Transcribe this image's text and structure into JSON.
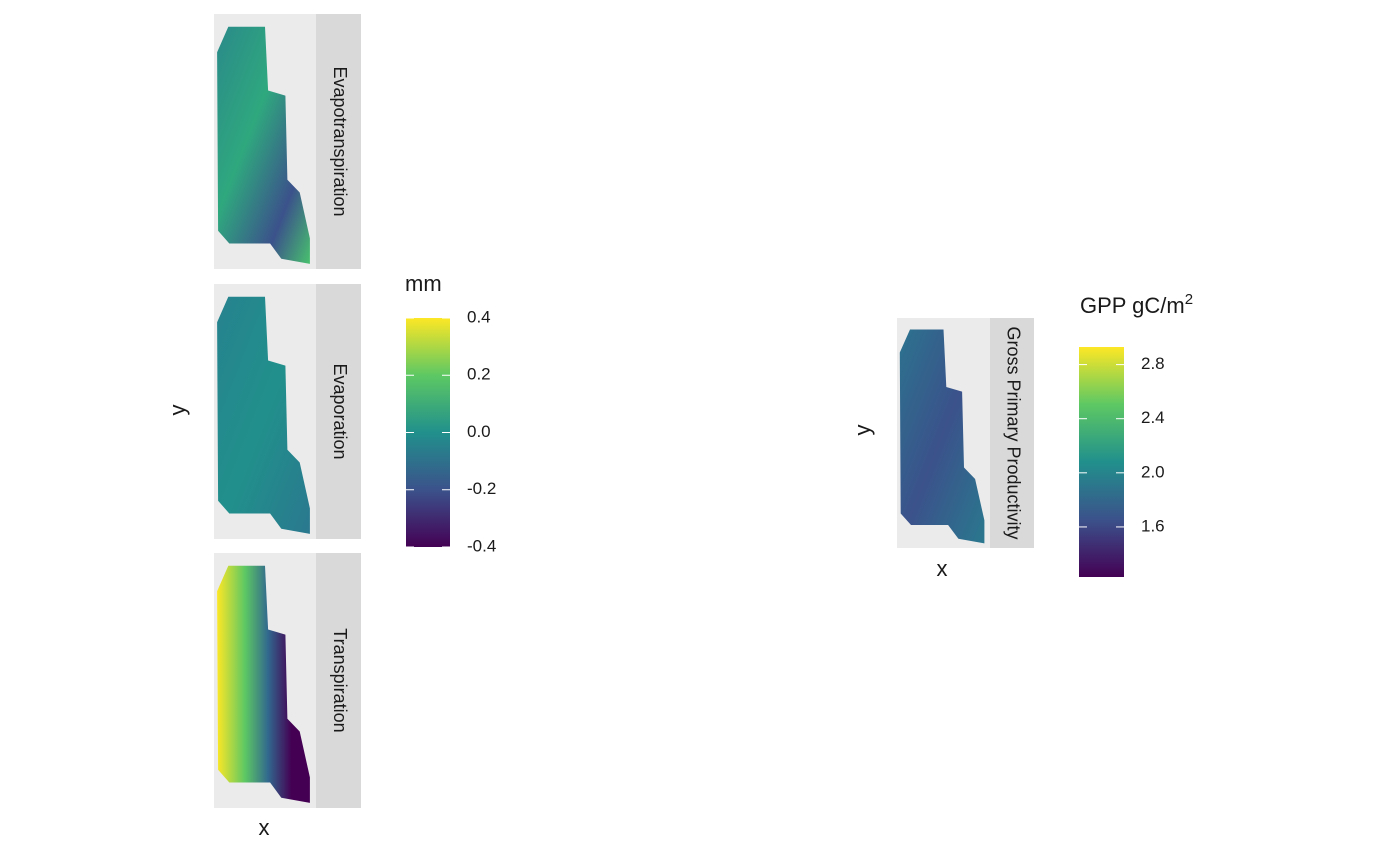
{
  "chart_data": [
    {
      "type": "raster",
      "facets": [
        "Evapotranspiration",
        "Evaporation",
        "Transpiration"
      ],
      "xlabel": "x",
      "ylabel": "y",
      "legend_title": "mm",
      "colorscale": "viridis",
      "clim": [
        -0.4,
        0.4
      ],
      "cticks": [
        0.4,
        0.2,
        {
          "value": 0,
          "label": "0.0"
        },
        -0.2,
        -0.4
      ]
    },
    {
      "type": "raster",
      "facets": [
        "Gross Primary Productivity"
      ],
      "xlabel": "x",
      "ylabel": "y",
      "legend_title": "GPP gC/m",
      "legend_title_superscript": "2",
      "colorscale": "viridis",
      "clim": [
        1.23,
        2.93
      ],
      "cticks": [
        2.8,
        2.4,
        {
          "value": 2,
          "label": "2.0"
        },
        1.6
      ]
    }
  ]
}
